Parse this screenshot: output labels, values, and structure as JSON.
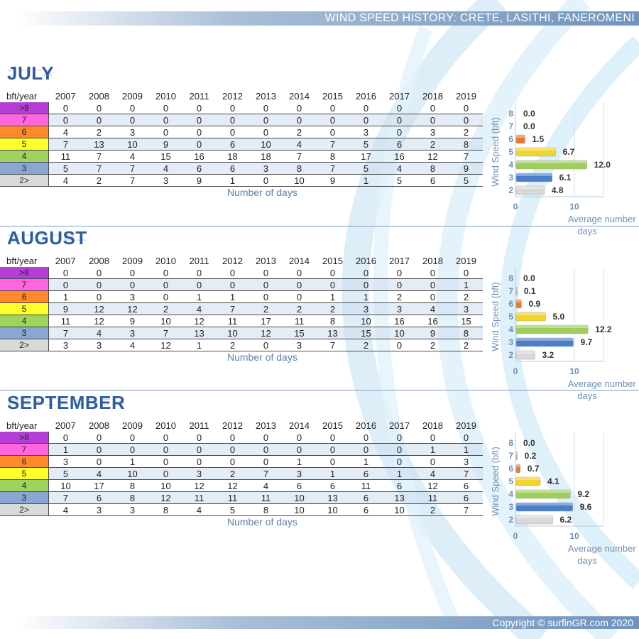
{
  "header": {
    "title": "WIND SPEED HISTORY: CRETE, LASITHI, FANEROMENI"
  },
  "footer": {
    "copyright": "Copyright © surfinGR.com 2020"
  },
  "table_header": {
    "label": "bft/year",
    "years": [
      "2007",
      "2008",
      "2009",
      "2010",
      "2011",
      "2012",
      "2013",
      "2014",
      "2015",
      "2016",
      "2017",
      "2018",
      "2019"
    ]
  },
  "scale": [
    {
      "label": ">8",
      "color": "#b43fd6"
    },
    {
      "label": "7",
      "color": "#ff66dd"
    },
    {
      "label": "6",
      "color": "#ff8a2a"
    },
    {
      "label": "5",
      "color": "#ffff2a"
    },
    {
      "label": "4",
      "color": "#9fd35f"
    },
    {
      "label": "3",
      "color": "#8aa6d2"
    },
    {
      "label": "2>",
      "color": "#d9d9d9"
    }
  ],
  "bar_colors": [
    "#5b2a8a",
    "#c0c0c0",
    "#e87a30",
    "#f2d42a",
    "#9fcf5a",
    "#4a7fc7",
    "#d8d8d8"
  ],
  "x_axis_label": "Number of days",
  "chart_axes": {
    "ylabel": "Wind Speed (bft)",
    "xlabel": "Average number of days",
    "x_ticks": [
      "0",
      "10"
    ],
    "y_ticks": [
      "8",
      "7",
      "6",
      "5",
      "4",
      "3",
      "2"
    ]
  },
  "months": [
    {
      "name": "JULY",
      "rows": [
        [
          "0",
          "0",
          "0",
          "0",
          "0",
          "0",
          "0",
          "0",
          "0",
          "0",
          "0",
          "0",
          "0"
        ],
        [
          "0",
          "0",
          "0",
          "0",
          "0",
          "0",
          "0",
          "0",
          "0",
          "0",
          "0",
          "0",
          "0"
        ],
        [
          "4",
          "2",
          "3",
          "0",
          "0",
          "0",
          "0",
          "2",
          "0",
          "3",
          "0",
          "3",
          "2"
        ],
        [
          "7",
          "13",
          "10",
          "9",
          "0",
          "6",
          "10",
          "4",
          "7",
          "5",
          "6",
          "2",
          "8"
        ],
        [
          "11",
          "7",
          "4",
          "15",
          "16",
          "18",
          "18",
          "7",
          "8",
          "17",
          "16",
          "12",
          "7"
        ],
        [
          "5",
          "7",
          "7",
          "4",
          "6",
          "6",
          "3",
          "8",
          "7",
          "5",
          "4",
          "8",
          "9"
        ],
        [
          "4",
          "2",
          "7",
          "3",
          "9",
          "1",
          "0",
          "10",
          "9",
          "1",
          "5",
          "6",
          "5"
        ]
      ]
    },
    {
      "name": "AUGUST",
      "rows": [
        [
          "0",
          "0",
          "0",
          "0",
          "0",
          "0",
          "0",
          "0",
          "0",
          "0",
          "0",
          "0",
          "0"
        ],
        [
          "0",
          "0",
          "0",
          "0",
          "0",
          "0",
          "0",
          "0",
          "0",
          "0",
          "0",
          "0",
          "1"
        ],
        [
          "1",
          "0",
          "3",
          "0",
          "1",
          "1",
          "0",
          "0",
          "1",
          "1",
          "2",
          "0",
          "2"
        ],
        [
          "9",
          "12",
          "12",
          "2",
          "4",
          "7",
          "2",
          "2",
          "2",
          "3",
          "3",
          "4",
          "3"
        ],
        [
          "11",
          "12",
          "9",
          "10",
          "12",
          "11",
          "17",
          "11",
          "8",
          "10",
          "16",
          "16",
          "15"
        ],
        [
          "7",
          "4",
          "3",
          "7",
          "13",
          "10",
          "12",
          "15",
          "13",
          "15",
          "10",
          "9",
          "8"
        ],
        [
          "3",
          "3",
          "4",
          "12",
          "1",
          "2",
          "0",
          "3",
          "7",
          "2",
          "0",
          "2",
          "2"
        ]
      ]
    },
    {
      "name": "SEPTEMBER",
      "rows": [
        [
          "0",
          "0",
          "0",
          "0",
          "0",
          "0",
          "0",
          "0",
          "0",
          "0",
          "0",
          "0",
          "0"
        ],
        [
          "1",
          "0",
          "0",
          "0",
          "0",
          "0",
          "0",
          "0",
          "0",
          "0",
          "0",
          "1",
          "1"
        ],
        [
          "3",
          "0",
          "1",
          "0",
          "0",
          "0",
          "0",
          "1",
          "0",
          "1",
          "0",
          "0",
          "3"
        ],
        [
          "5",
          "4",
          "10",
          "0",
          "3",
          "2",
          "7",
          "3",
          "1",
          "6",
          "1",
          "4",
          "7"
        ],
        [
          "10",
          "17",
          "8",
          "10",
          "12",
          "12",
          "4",
          "6",
          "6",
          "11",
          "6",
          "12",
          "6"
        ],
        [
          "7",
          "6",
          "8",
          "12",
          "11",
          "11",
          "11",
          "10",
          "13",
          "6",
          "13",
          "11",
          "6"
        ],
        [
          "4",
          "3",
          "3",
          "8",
          "4",
          "5",
          "8",
          "10",
          "10",
          "6",
          "10",
          "2",
          "7"
        ]
      ]
    }
  ],
  "chart_data": [
    {
      "type": "bar",
      "title": "JULY",
      "categories": [
        "8",
        "7",
        "6",
        "5",
        "4",
        "3",
        "2"
      ],
      "values": [
        0.0,
        0.0,
        1.5,
        6.7,
        12.0,
        6.1,
        4.8
      ],
      "value_labels": [
        "0.0",
        "0.0",
        "1.5",
        "6.7",
        "12.0",
        "6.1",
        "4.8"
      ],
      "xlim": [
        0,
        15
      ]
    },
    {
      "type": "bar",
      "title": "AUGUST",
      "categories": [
        "8",
        "7",
        "6",
        "5",
        "4",
        "3",
        "2"
      ],
      "values": [
        0.0,
        0.1,
        0.9,
        5.0,
        12.2,
        9.7,
        3.2
      ],
      "value_labels": [
        "0.0",
        "0.1",
        "0.9",
        "5.0",
        "12.2",
        "9.7",
        "3.2"
      ],
      "xlim": [
        0,
        15
      ]
    },
    {
      "type": "bar",
      "title": "SEPTEMBER",
      "categories": [
        "8",
        "7",
        "6",
        "5",
        "4",
        "3",
        "2"
      ],
      "values": [
        0.0,
        0.2,
        0.7,
        4.1,
        9.2,
        9.6,
        6.2
      ],
      "value_labels": [
        "0.0",
        "0.2",
        "0.7",
        "4.1",
        "9.2",
        "9.6",
        "6.2"
      ],
      "xlim": [
        0,
        15
      ]
    }
  ]
}
